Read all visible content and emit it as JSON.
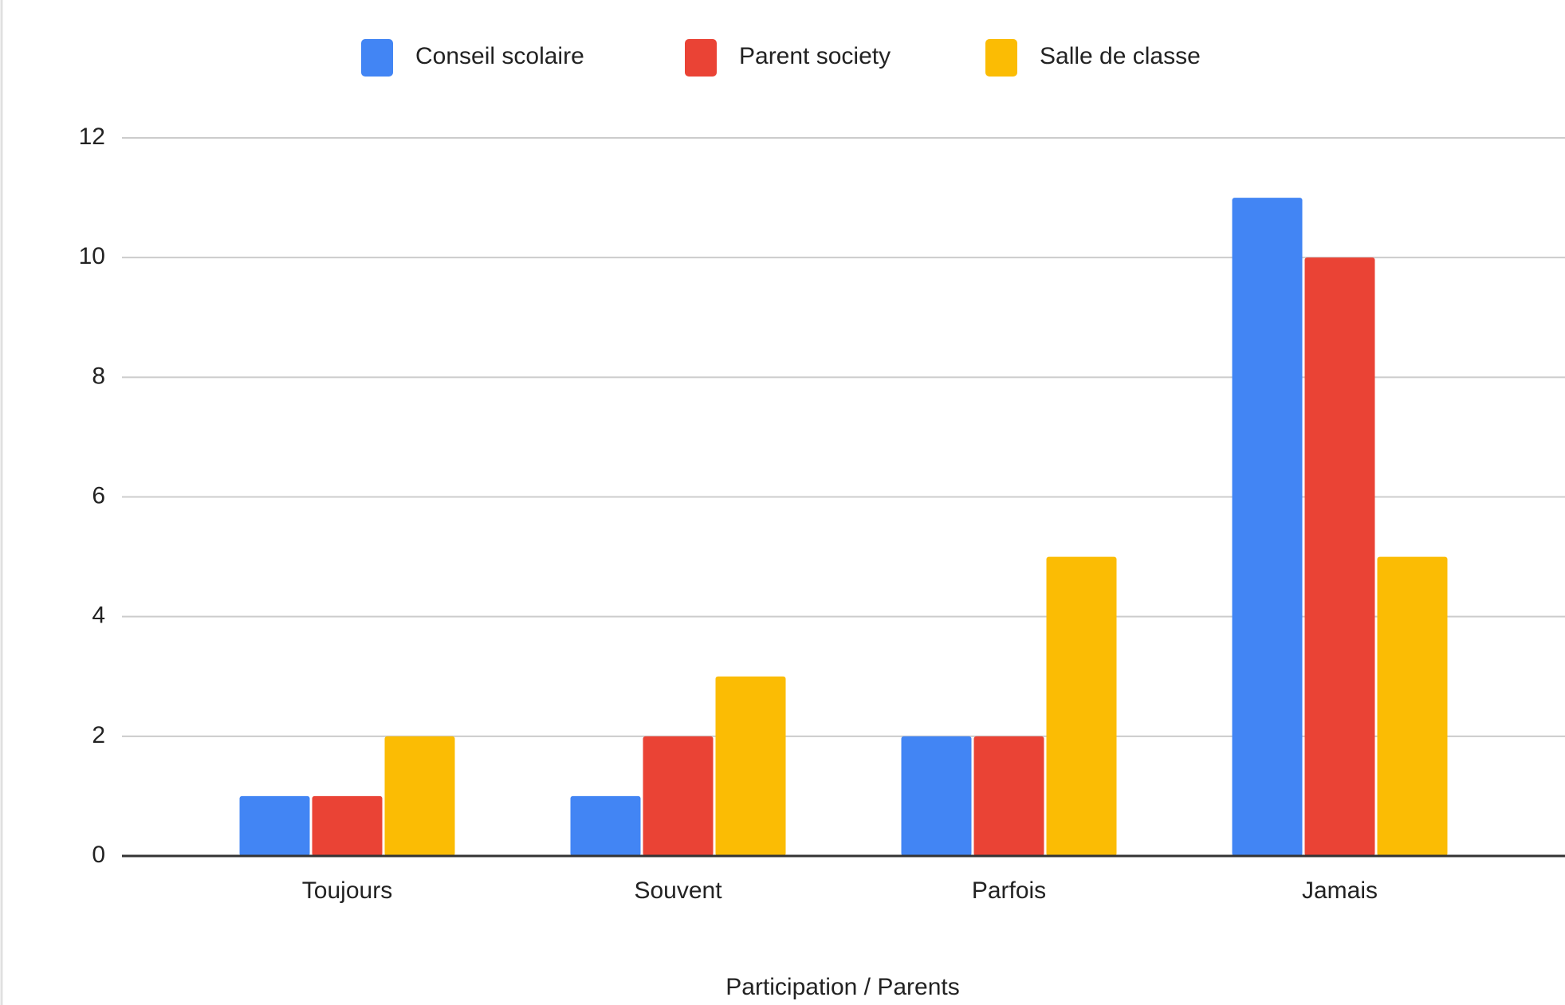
{
  "chart_data": {
    "type": "bar",
    "x_label": "Participation / Parents",
    "categories": [
      "Toujours",
      "Souvent",
      "Parfois",
      "Jamais"
    ],
    "series": [
      {
        "name": "Conseil scolaire",
        "color": "#4285f4",
        "values": [
          1,
          1,
          2,
          11
        ]
      },
      {
        "name": "Parent society",
        "color": "#ea4335",
        "values": [
          1,
          2,
          2,
          10
        ]
      },
      {
        "name": "Salle de classe",
        "color": "#fbbc04",
        "values": [
          2,
          3,
          5,
          5
        ]
      }
    ],
    "ylim": [
      0,
      12
    ],
    "yticks": [
      0,
      2,
      4,
      6,
      8,
      10,
      12
    ],
    "grid": true,
    "legend": "top"
  }
}
